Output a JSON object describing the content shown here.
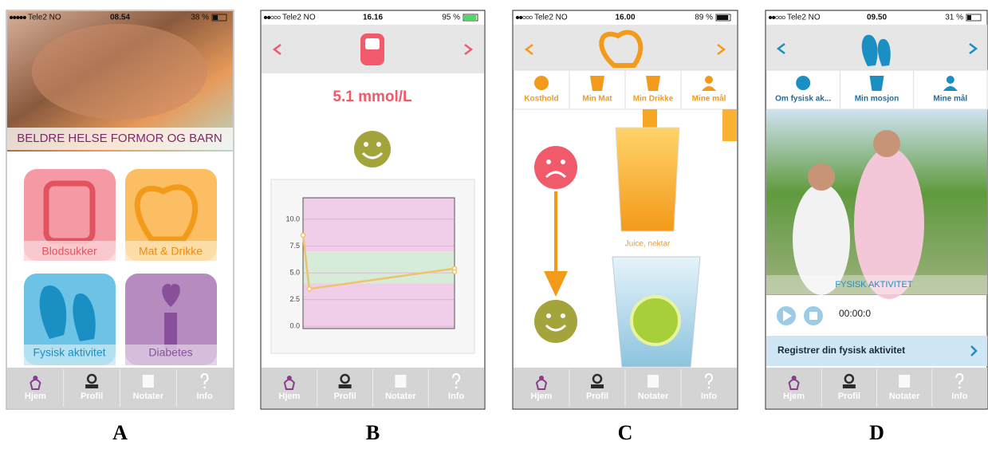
{
  "tab_bar": [
    "Hjem",
    "Profil",
    "Notater",
    "Info"
  ],
  "panels": [
    {
      "label": "A",
      "status": {
        "carrier": "Tele2 NO",
        "time": "08.54",
        "battery": "38 %"
      },
      "banner": "BELDRE HELSE FORMOR OG BARN",
      "tiles": [
        "Blodsukker",
        "Mat & Drikke",
        "Fysisk aktivitet",
        "Diabetes"
      ]
    },
    {
      "label": "B",
      "status": {
        "carrier": "Tele2 NO",
        "time": "16.16",
        "battery": "95 %"
      },
      "reading": "5.1 mmol/L",
      "chart_data": {
        "type": "line",
        "x": [
          0,
          1,
          24,
          24
        ],
        "values": [
          8.5,
          3.5,
          5.4,
          5.1
        ],
        "color": "#efc36a",
        "xlim": [
          0,
          24
        ],
        "ylim": [
          -0.2,
          12
        ],
        "yticks": [
          {
            "value": 0,
            "label": "0.0"
          },
          {
            "value": 2.5,
            "label": "2.5"
          },
          {
            "value": 5,
            "label": "5.0"
          },
          {
            "value": 7.5,
            "label": "7.5"
          },
          {
            "value": 10,
            "label": "10.0"
          }
        ],
        "background": "#f0cde8",
        "bands": [
          {
            "from": 4,
            "to": 7,
            "color": "#d6ecd9"
          }
        ],
        "grid": true
      }
    },
    {
      "label": "C",
      "status": {
        "carrier": "Tele2 NO",
        "time": "16.00",
        "battery": "89 %"
      },
      "tabs": [
        "Kosthold",
        "Min Mat",
        "Min Drikke",
        "Mine mål"
      ],
      "caption": "Juice, nektar"
    },
    {
      "label": "D",
      "status": {
        "carrier": "Tele2 NO",
        "time": "09.50",
        "battery": "31 %"
      },
      "tabs": [
        "Om fysisk ak...",
        "Min mosjon",
        "Mine mål"
      ],
      "banner": "FYSISK AKTIVITET",
      "timer": "00:00:0",
      "button": "Registrer din fysisk aktivitet"
    }
  ]
}
